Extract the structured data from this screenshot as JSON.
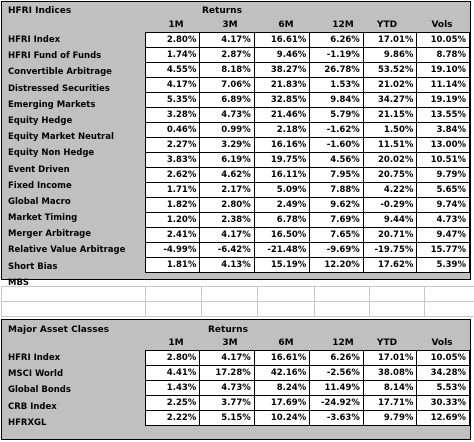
{
  "columns": [
    "1M",
    "3M",
    "6M",
    "12M",
    "YTD",
    "Vols"
  ],
  "hfri": {
    "title": "HFRI Indices",
    "returns_label": "Returns",
    "rows": [
      {
        "label": "HFRI Index",
        "values": [
          "2.80%",
          "4.17%",
          "16.61%",
          "6.26%",
          "17.01%",
          "10.05%"
        ]
      },
      {
        "label": "HFRI Fund of Funds",
        "values": [
          "1.74%",
          "2.87%",
          "9.46%",
          "-1.19%",
          "9.86%",
          "8.78%"
        ]
      },
      {
        "label": "Convertible Arbitrage",
        "values": [
          "4.55%",
          "8.18%",
          "38.27%",
          "26.78%",
          "53.52%",
          "19.10%"
        ]
      },
      {
        "label": "Distressed Securities",
        "values": [
          "4.17%",
          "7.06%",
          "21.83%",
          "1.53%",
          "21.02%",
          "11.14%"
        ]
      },
      {
        "label": "Emerging Markets",
        "values": [
          "5.35%",
          "6.89%",
          "32.85%",
          "9.84%",
          "34.27%",
          "19.19%"
        ]
      },
      {
        "label": "Equity Hedge",
        "values": [
          "3.28%",
          "4.73%",
          "21.46%",
          "5.79%",
          "21.15%",
          "13.55%"
        ]
      },
      {
        "label": "Equity Market Neutral",
        "values": [
          "0.46%",
          "0.99%",
          "2.18%",
          "-1.62%",
          "1.50%",
          "3.84%"
        ]
      },
      {
        "label": "Equity Non Hedge",
        "values": [
          "2.27%",
          "3.29%",
          "16.16%",
          "-1.60%",
          "11.51%",
          "13.00%"
        ]
      },
      {
        "label": "Event Driven",
        "values": [
          "3.83%",
          "6.19%",
          "19.75%",
          "4.56%",
          "20.02%",
          "10.51%"
        ]
      },
      {
        "label": "Fixed Income",
        "values": [
          "2.62%",
          "4.62%",
          "16.11%",
          "7.95%",
          "20.75%",
          "9.79%"
        ]
      },
      {
        "label": "Global Macro",
        "values": [
          "1.71%",
          "2.17%",
          "5.09%",
          "7.88%",
          "4.22%",
          "5.65%"
        ]
      },
      {
        "label": "Market Timing",
        "values": [
          "1.82%",
          "2.80%",
          "2.49%",
          "9.62%",
          "-0.29%",
          "9.74%"
        ]
      },
      {
        "label": "Merger Arbitrage",
        "values": [
          "1.20%",
          "2.38%",
          "6.78%",
          "7.69%",
          "9.44%",
          "4.73%"
        ]
      },
      {
        "label": "Relative Value Arbitrage",
        "values": [
          "2.41%",
          "4.17%",
          "16.50%",
          "7.65%",
          "20.71%",
          "9.47%"
        ]
      },
      {
        "label": "Short Bias",
        "values": [
          "-4.99%",
          "-6.42%",
          "-21.48%",
          "-9.69%",
          "-19.75%",
          "15.77%"
        ]
      },
      {
        "label": "MBS",
        "values": [
          "1.81%",
          "4.13%",
          "15.19%",
          "12.20%",
          "17.62%",
          "5.39%"
        ]
      }
    ]
  },
  "major": {
    "title": "Major Asset Classes",
    "returns_label": "Returns",
    "rows": [
      {
        "label": "HFRI Index",
        "values": [
          "2.80%",
          "4.17%",
          "16.61%",
          "6.26%",
          "17.01%",
          "10.05%"
        ]
      },
      {
        "label": "MSCI World",
        "values": [
          "4.41%",
          "17.28%",
          "42.16%",
          "-2.56%",
          "38.08%",
          "34.28%"
        ]
      },
      {
        "label": "Global Bonds",
        "values": [
          "1.43%",
          "4.73%",
          "8.24%",
          "11.49%",
          "8.14%",
          "5.53%"
        ]
      },
      {
        "label": "CRB Index",
        "values": [
          "2.25%",
          "3.77%",
          "17.69%",
          "-24.92%",
          "17.71%",
          "30.33%"
        ]
      },
      {
        "label": "HFRXGL",
        "values": [
          "2.22%",
          "5.15%",
          "10.24%",
          "-3.63%",
          "9.79%",
          "12.69%"
        ]
      }
    ]
  }
}
